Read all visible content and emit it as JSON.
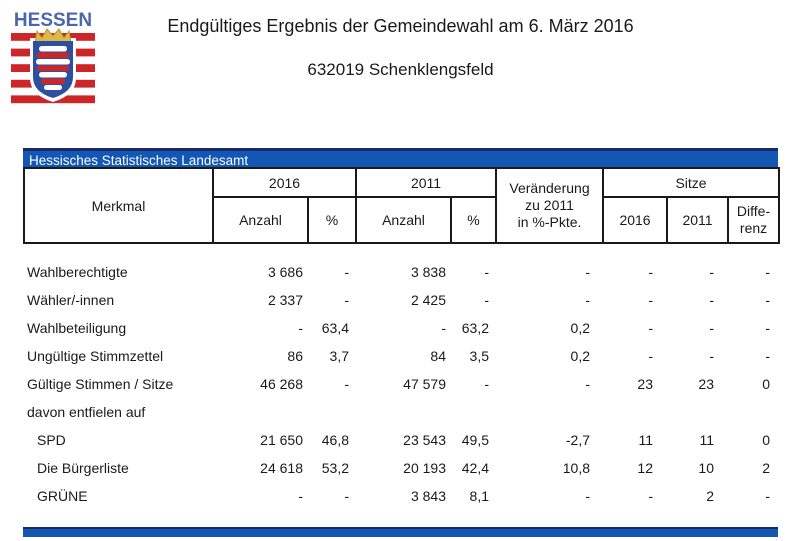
{
  "logo": {
    "wordmark": "HESSEN",
    "colors": {
      "wordmark_blue": "#4a67ae",
      "stripe_red": "#cc2628",
      "shield_blue": "#2d4f9f",
      "crown_gold": "#ddb94a"
    }
  },
  "header": {
    "title": "Endgültiges Ergebnis der Gemeindewahl am 6. März 2016",
    "subtitle": "632019 Schenklengsfeld"
  },
  "table": {
    "agency": "Hessisches Statistisches Landesamt",
    "accent_blue": "#1157b3",
    "head": {
      "merkmal": "Merkmal",
      "g2016": "2016",
      "g2011": "2011",
      "anzahl": "Anzahl",
      "pct": "%",
      "veraenderung": "Veränderung\nzu 2011\nin %-Pkte.",
      "sitze": "Sitze",
      "sitze2016": "2016",
      "sitze2011": "2011",
      "differenz": "Diffe-\nrenz"
    },
    "rows": [
      {
        "label": "Wahlberechtigte",
        "indent": false,
        "cells": [
          "3 686",
          "-",
          "3 838",
          "-",
          "-",
          "-",
          "-",
          "-"
        ]
      },
      {
        "label": "Wähler/-innen",
        "indent": false,
        "cells": [
          "2 337",
          "-",
          "2 425",
          "-",
          "-",
          "-",
          "-",
          "-"
        ]
      },
      {
        "label": "Wahlbeteiligung",
        "indent": false,
        "cells": [
          "-",
          "63,4",
          "-",
          "63,2",
          "0,2",
          "-",
          "-",
          "-"
        ]
      },
      {
        "label": "Ungültige Stimmzettel",
        "indent": false,
        "cells": [
          "86",
          "3,7",
          "84",
          "3,5",
          "0,2",
          "-",
          "-",
          "-"
        ]
      },
      {
        "label": "Gültige Stimmen / Sitze",
        "indent": false,
        "cells": [
          "46 268",
          "-",
          "47 579",
          "-",
          "-",
          "23",
          "23",
          "0"
        ]
      },
      {
        "label": "davon entfielen auf",
        "indent": false,
        "cells": [
          "",
          "",
          "",
          "",
          "",
          "",
          "",
          ""
        ]
      },
      {
        "label": "SPD",
        "indent": true,
        "cells": [
          "21 650",
          "46,8",
          "23 543",
          "49,5",
          "-2,7",
          "11",
          "11",
          "0"
        ]
      },
      {
        "label": "Die Bürgerliste",
        "indent": true,
        "cells": [
          "24 618",
          "53,2",
          "20 193",
          "42,4",
          "10,8",
          "12",
          "10",
          "2"
        ]
      },
      {
        "label": "GRÜNE",
        "indent": true,
        "cells": [
          "-",
          "-",
          "3 843",
          "8,1",
          "-",
          "-",
          "2",
          "-"
        ]
      }
    ]
  }
}
